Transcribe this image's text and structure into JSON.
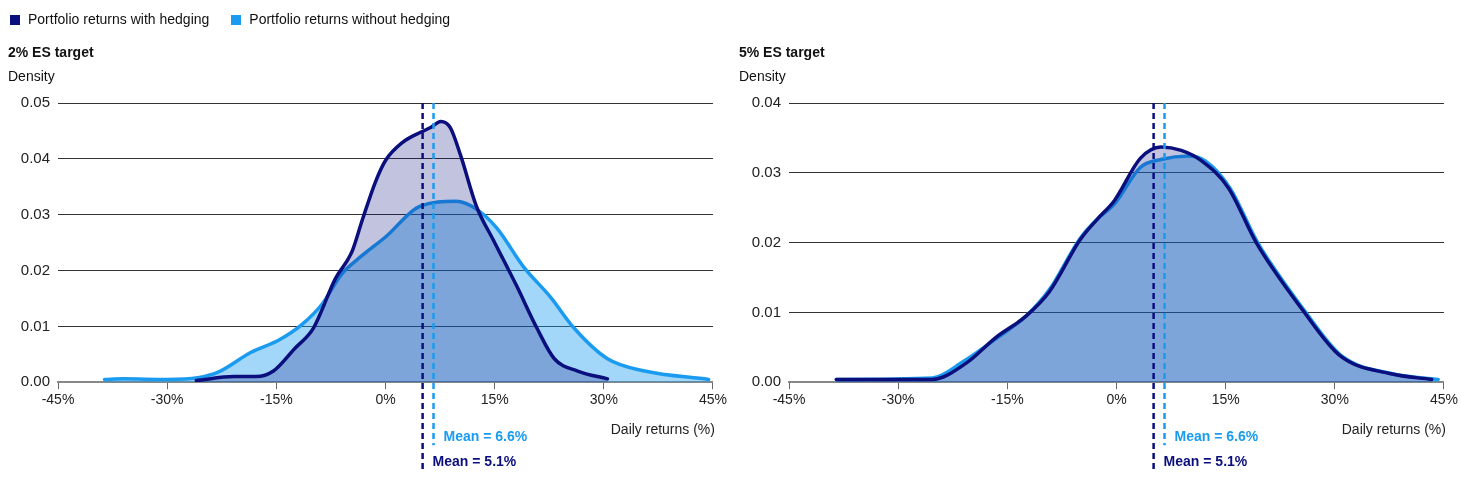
{
  "chart_data": [
    {
      "type": "area",
      "title": "2% ES target",
      "ylabel": "Density",
      "xlabel": "Daily returns (%)",
      "legend": "top left",
      "grid": "y",
      "line_style": "solid",
      "marker": "none",
      "xlim": [
        -45,
        45
      ],
      "xticks": [
        {
          "value": -45,
          "label": "-45%"
        },
        {
          "value": -30,
          "label": "-30%"
        },
        {
          "value": -15,
          "label": "-15%"
        },
        {
          "value": 0,
          "label": "0%"
        },
        {
          "value": 15,
          "label": "15%"
        },
        {
          "value": 30,
          "label": "30%"
        },
        {
          "value": 45,
          "label": "45%"
        }
      ],
      "ylim": [
        0,
        0.05
      ],
      "yticks": [
        {
          "value": 0,
          "label": "0.00"
        },
        {
          "value": 0.01,
          "label": "0.01"
        },
        {
          "value": 0.02,
          "label": "0.02"
        },
        {
          "value": 0.03,
          "label": "0.03"
        },
        {
          "value": 0.04,
          "label": "0.04"
        },
        {
          "value": 0.05,
          "label": "0.05"
        }
      ],
      "series": [
        {
          "name": "Portfolio returns with hedging",
          "color": "#0a0f7d",
          "x": [
            -26,
            -20.8,
            -17.8,
            -15.4,
            -12.5,
            -9.9,
            -6.9,
            -4.6,
            -3.2,
            -1.4,
            0,
            2.4,
            4.9,
            6.2,
            7.6,
            8.9,
            10.3,
            12.5,
            14.8,
            18,
            20.8,
            23.2,
            26.4,
            30.5
          ],
          "values": [
            0.0003,
            0.001,
            0.001,
            0.002,
            0.006,
            0.0097,
            0.0185,
            0.0234,
            0.029,
            0.0358,
            0.0397,
            0.043,
            0.0448,
            0.0456,
            0.0467,
            0.0456,
            0.0407,
            0.0315,
            0.0255,
            0.0173,
            0.0097,
            0.0042,
            0.002,
            0.0006
          ]
        },
        {
          "name": "Portfolio returns without hedging",
          "color": "#1a9bef",
          "x": [
            -38.6,
            -36,
            -30,
            -25.8,
            -23,
            -18.4,
            -14.7,
            -11.5,
            -8.7,
            -6,
            -3.2,
            0,
            4.7,
            9.7,
            12.5,
            15.3,
            19,
            22.7,
            25.9,
            30.5,
            35.6,
            44.4
          ],
          "values": [
            0.0005,
            0.0006,
            0.0005,
            0.0008,
            0.0018,
            0.0054,
            0.0075,
            0.0103,
            0.014,
            0.0194,
            0.0227,
            0.026,
            0.0315,
            0.0324,
            0.031,
            0.0276,
            0.0206,
            0.0152,
            0.0097,
            0.0042,
            0.002,
            0.0005
          ]
        }
      ],
      "ref_lines": [
        {
          "axis": "x",
          "value": 6.6,
          "label": "Mean = 6.6%",
          "color": "#1a9bef",
          "line_style": "dashed"
        },
        {
          "axis": "x",
          "value": 5.1,
          "label": "Mean = 5.1%",
          "color": "#0a0f7d",
          "line_style": "dashed"
        }
      ]
    },
    {
      "type": "area",
      "title": "5% ES target",
      "ylabel": "Density",
      "xlabel": "Daily returns (%)",
      "grid": "y",
      "line_style": "solid",
      "marker": "none",
      "xlim": [
        -45,
        45
      ],
      "xticks": [
        {
          "value": -45,
          "label": "-45%"
        },
        {
          "value": -30,
          "label": "-30%"
        },
        {
          "value": -15,
          "label": "-15%"
        },
        {
          "value": 0,
          "label": "0%"
        },
        {
          "value": 15,
          "label": "15%"
        },
        {
          "value": 30,
          "label": "30%"
        },
        {
          "value": 45,
          "label": "45%"
        }
      ],
      "ylim": [
        0,
        0.04
      ],
      "yticks": [
        {
          "value": 0,
          "label": "0.00"
        },
        {
          "value": 0.01,
          "label": "0.01"
        },
        {
          "value": 0.02,
          "label": "0.02"
        },
        {
          "value": 0.03,
          "label": "0.03"
        },
        {
          "value": 0.04,
          "label": "0.04"
        }
      ],
      "series": [
        {
          "color": "#0a0f7d",
          "x": [
            -38.5,
            -25.3,
            -20.7,
            -16.6,
            -12.4,
            -9.2,
            -5,
            -2.6,
            -0.3,
            3.3,
            6.1,
            8.9,
            11.7,
            15.4,
            19.2,
            25.6,
            30.7,
            37.7,
            43.3
          ],
          "values": [
            0.0004,
            0.0004,
            0.0027,
            0.0064,
            0.0095,
            0.013,
            0.0204,
            0.0234,
            0.026,
            0.0321,
            0.0337,
            0.0332,
            0.0317,
            0.0278,
            0.02,
            0.0103,
            0.0038,
            0.0012,
            0.0004
          ]
        },
        {
          "color": "#1a9bef",
          "x": [
            -38.5,
            -25.3,
            -21,
            -16.6,
            -12.4,
            -9.2,
            -5,
            -2.6,
            -0.3,
            3.3,
            6.1,
            9.9,
            12.2,
            15.6,
            19.4,
            25.8,
            30.9,
            37.9,
            44.2
          ],
          "values": [
            0.0004,
            0.0006,
            0.003,
            0.0062,
            0.0095,
            0.0133,
            0.0206,
            0.0234,
            0.0255,
            0.0308,
            0.0319,
            0.0324,
            0.0317,
            0.0278,
            0.02,
            0.0103,
            0.0038,
            0.0012,
            0.0004
          ]
        }
      ],
      "ref_lines": [
        {
          "axis": "x",
          "value": 6.6,
          "label": "Mean = 6.6%",
          "color": "#1a9bef",
          "line_style": "dashed"
        },
        {
          "axis": "x",
          "value": 5.1,
          "label": "Mean = 5.1%",
          "color": "#0a0f7d",
          "line_style": "dashed"
        }
      ]
    }
  ]
}
